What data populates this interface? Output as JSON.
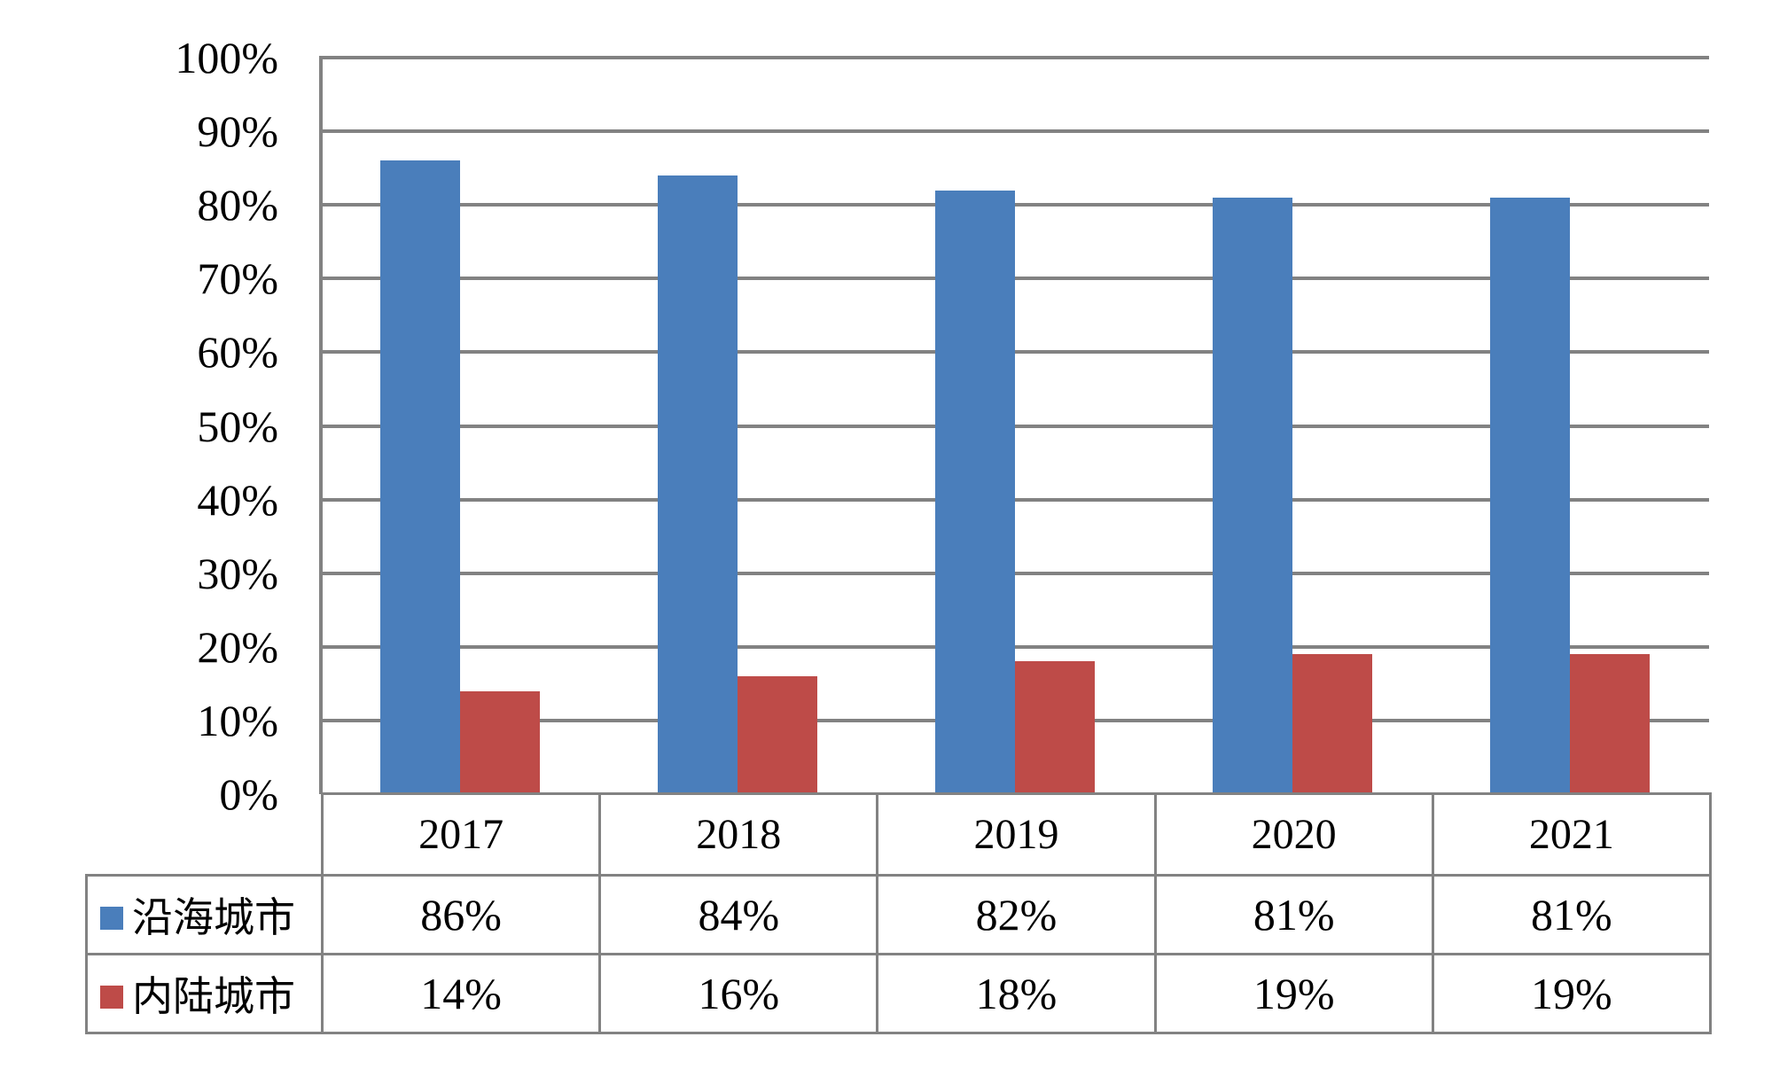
{
  "chart_data": {
    "type": "bar",
    "title": "",
    "xlabel": "",
    "ylabel": "",
    "categories": [
      "2017",
      "2018",
      "2019",
      "2020",
      "2021"
    ],
    "series": [
      {
        "name": "沿海城市",
        "color": "#4A7EBB",
        "values": [
          86,
          84,
          82,
          81,
          81
        ],
        "display_values": [
          "86%",
          "84%",
          "82%",
          "81%",
          "81%"
        ]
      },
      {
        "name": "内陆城市",
        "color": "#BE4B48",
        "values": [
          14,
          16,
          18,
          19,
          19
        ],
        "display_values": [
          "14%",
          "16%",
          "18%",
          "19%",
          "19%"
        ]
      }
    ],
    "ylim": [
      0,
      100
    ],
    "y_ticks": [
      0,
      10,
      20,
      30,
      40,
      50,
      60,
      70,
      80,
      90,
      100
    ],
    "y_tick_labels": [
      "0%",
      "10%",
      "20%",
      "30%",
      "40%",
      "50%",
      "60%",
      "70%",
      "80%",
      "90%",
      "100%"
    ],
    "grid": true,
    "legend_position": "table-left",
    "data_table_shown": true
  },
  "colors": {
    "series_blue": "#4A7EBB",
    "series_red": "#BE4B48",
    "gridline": "#828282",
    "table_border": "#828282",
    "text": "#000000",
    "background": "#FFFFFF"
  }
}
